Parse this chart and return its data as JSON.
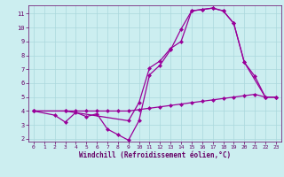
{
  "xlabel": "Windchill (Refroidissement éolien,°C)",
  "background_color": "#cceef0",
  "plot_bg_color": "#cceef0",
  "grid_color": "#aad8dc",
  "line_color": "#990099",
  "xlim": [
    -0.5,
    23.5
  ],
  "ylim": [
    1.8,
    11.6
  ],
  "yticks": [
    2,
    3,
    4,
    5,
    6,
    7,
    8,
    9,
    10,
    11
  ],
  "xticks": [
    0,
    1,
    2,
    3,
    4,
    5,
    6,
    7,
    8,
    9,
    10,
    11,
    12,
    13,
    14,
    15,
    16,
    17,
    18,
    19,
    20,
    21,
    22,
    23
  ],
  "line1_x": [
    0,
    2,
    3,
    4,
    5,
    6,
    7,
    8,
    9,
    10,
    11,
    12,
    13,
    14,
    15,
    16,
    17,
    18,
    19,
    20,
    21,
    22,
    23
  ],
  "line1_y": [
    4.0,
    3.7,
    3.2,
    3.9,
    3.6,
    3.8,
    2.7,
    2.3,
    1.9,
    3.3,
    6.6,
    7.3,
    8.4,
    9.9,
    11.2,
    11.3,
    11.4,
    11.2,
    10.3,
    7.5,
    6.5,
    5.0,
    5.0
  ],
  "line2_x": [
    0,
    3,
    4,
    5,
    6,
    7,
    8,
    9,
    10,
    11,
    12,
    13,
    14,
    15,
    16,
    17,
    18,
    19,
    20,
    21,
    22,
    23
  ],
  "line2_y": [
    4.0,
    4.0,
    4.0,
    4.0,
    4.0,
    4.0,
    4.0,
    4.0,
    4.1,
    4.2,
    4.3,
    4.4,
    4.5,
    4.6,
    4.7,
    4.8,
    4.9,
    5.0,
    5.1,
    5.2,
    5.0,
    5.0
  ],
  "line3_x": [
    0,
    3,
    9,
    10,
    11,
    12,
    13,
    14,
    15,
    16,
    17,
    18,
    19,
    20,
    22,
    23
  ],
  "line3_y": [
    4.0,
    4.0,
    3.3,
    4.6,
    7.1,
    7.6,
    8.5,
    9.0,
    11.2,
    11.3,
    11.4,
    11.2,
    10.3,
    7.5,
    5.0,
    5.0
  ],
  "markersize": 2.5,
  "linewidth": 0.9
}
